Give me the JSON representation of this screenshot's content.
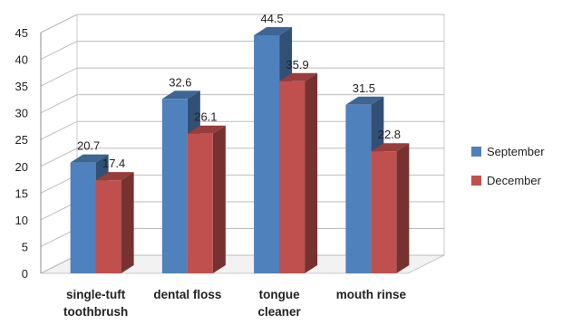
{
  "chart_data": {
    "type": "bar",
    "categories": [
      "single-tuft toothbrush",
      "dental floss",
      "tongue cleaner",
      "mouth rinse"
    ],
    "series": [
      {
        "name": "September",
        "values": [
          20.7,
          32.6,
          44.5,
          31.5
        ],
        "color": "#4f81bd"
      },
      {
        "name": "December",
        "values": [
          17.4,
          26.1,
          35.9,
          22.8
        ],
        "color": "#c0504d"
      }
    ],
    "ylim": [
      0,
      45
    ],
    "yticks": [
      0,
      5,
      10,
      15,
      20,
      25,
      30,
      35,
      40,
      45
    ],
    "grid": true,
    "legend_position": "right",
    "style": "3d-clustered-column",
    "data_labels": true
  }
}
